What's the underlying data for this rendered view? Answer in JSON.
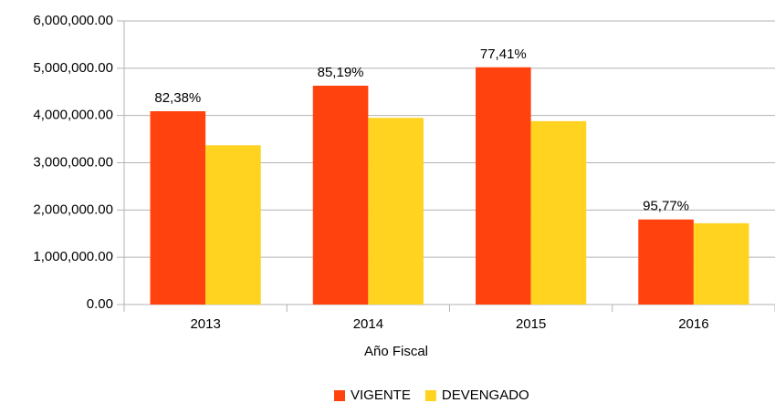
{
  "chart_data": {
    "type": "bar",
    "x_label": "Año Fiscal",
    "categories": [
      "2013",
      "2014",
      "2015",
      "2016"
    ],
    "series": [
      {
        "name": "VIGENTE",
        "color": "#ff420e",
        "values": [
          4090000,
          4630000,
          5020000,
          1800000
        ]
      },
      {
        "name": "DEVENGADO",
        "color": "#ffd320",
        "values": [
          3370000,
          3950000,
          3880000,
          1720000
        ]
      }
    ],
    "annotations": [
      "82,38%",
      "85,19%",
      "77,41%",
      "95,77%"
    ],
    "ylim": [
      0,
      6000000
    ],
    "yticks": [
      {
        "value": 0,
        "label": "0.00"
      },
      {
        "value": 1000000,
        "label": "1,000,000.00"
      },
      {
        "value": 2000000,
        "label": "2,000,000.00"
      },
      {
        "value": 3000000,
        "label": "3,000,000.00"
      },
      {
        "value": 4000000,
        "label": "4,000,000.00"
      },
      {
        "value": 5000000,
        "label": "5,000,000.00"
      },
      {
        "value": 6000000,
        "label": "6,000,000.00"
      }
    ],
    "grid": true,
    "legend": "bottom"
  }
}
